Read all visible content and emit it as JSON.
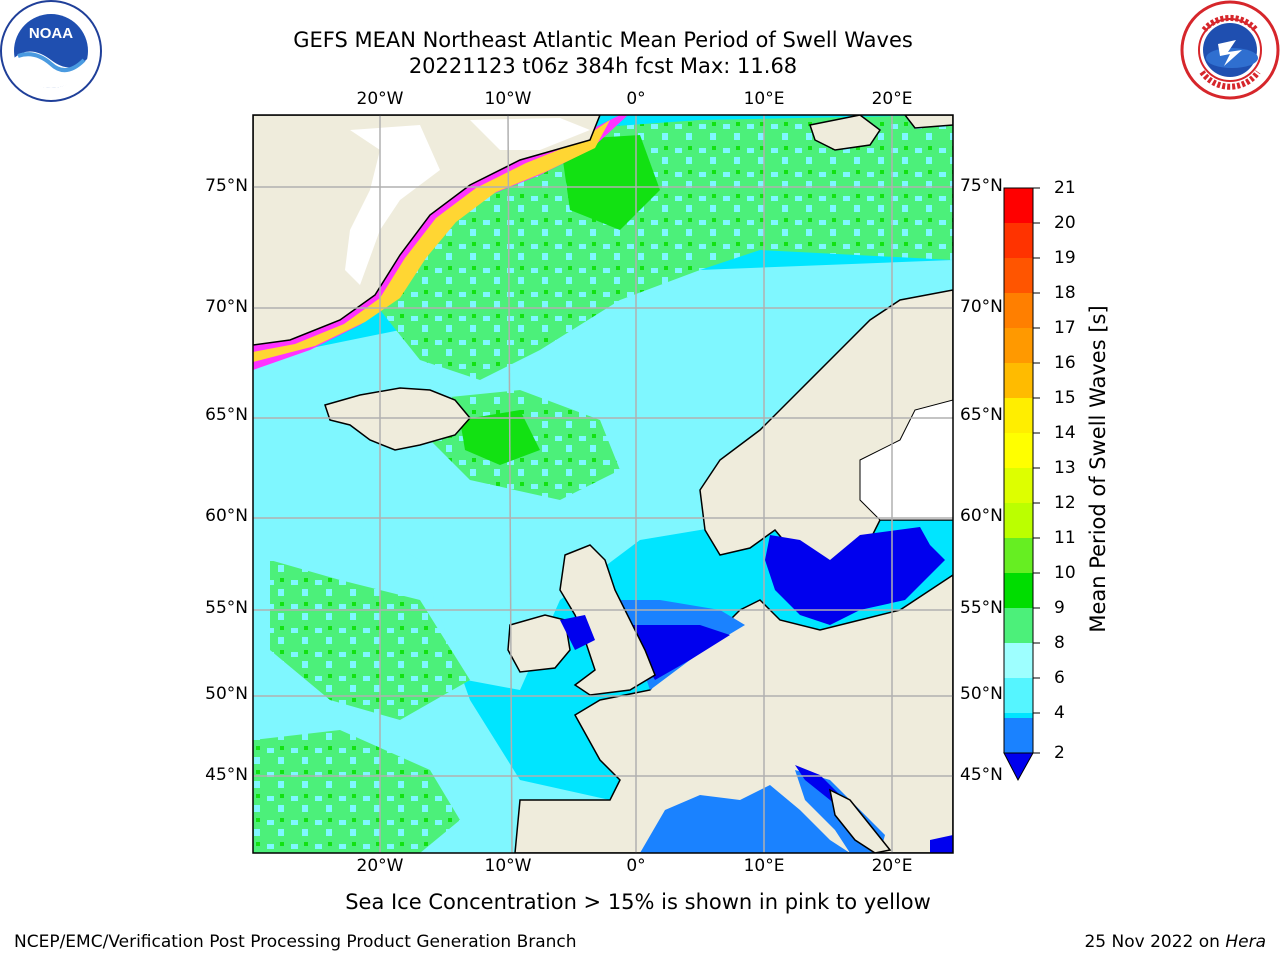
{
  "title": {
    "line1": "GEFS MEAN Northeast Atlantic Mean Period of Swell Waves",
    "line2": "20221123 t06z 384h fcst   Max: 11.68"
  },
  "logos": {
    "left": "noaa-logo",
    "right": "national-weather-service-logo"
  },
  "map": {
    "lon_ticks": [
      "20°W",
      "10°W",
      "0°",
      "10°E",
      "20°E"
    ],
    "lat_ticks": [
      "75°N",
      "70°N",
      "65°N",
      "60°N",
      "55°N",
      "50°N",
      "45°N"
    ],
    "extent": {
      "lon": [
        -30,
        25
      ],
      "lat": [
        41,
        78
      ]
    },
    "colors": {
      "ocean_low": "#00e5ff",
      "ocean_mid": "#7ff7ff",
      "ocean_green": "#4cf07a",
      "ocean_bright_green": "#12e112",
      "shallow_blue": "#0000ee",
      "med_blue": "#1a82ff",
      "land": "#efecdc",
      "ice_pink": "#ff33ff",
      "ice_yellow": "#ffd633"
    }
  },
  "colorbar": {
    "label": "Mean Period of Swell Waves [s]",
    "ticks": [
      "21",
      "20",
      "19",
      "18",
      "17",
      "16",
      "15",
      "14",
      "13",
      "12",
      "11",
      "10",
      "9",
      "8",
      "6",
      "4",
      "2"
    ],
    "colors_top_to_bottom": [
      "#ff0000",
      "#ff3300",
      "#ff5500",
      "#ff7f00",
      "#ff9900",
      "#ffbb00",
      "#ffee00",
      "#ffff00",
      "#ddff00",
      "#bbff00",
      "#66ee22",
      "#00dd00",
      "#4cf07a",
      "#8cf9b4",
      "#9effff",
      "#55f5ff",
      "#00e5ff",
      "#1a82ff",
      "#0000ee"
    ]
  },
  "note": "Sea Ice Concentration > 15% is shown in pink to yellow",
  "footer": {
    "left": "NCEP/EMC/Verification Post Processing Product Generation Branch",
    "date": "25 Nov 2022 on ",
    "machine": "Hera"
  }
}
